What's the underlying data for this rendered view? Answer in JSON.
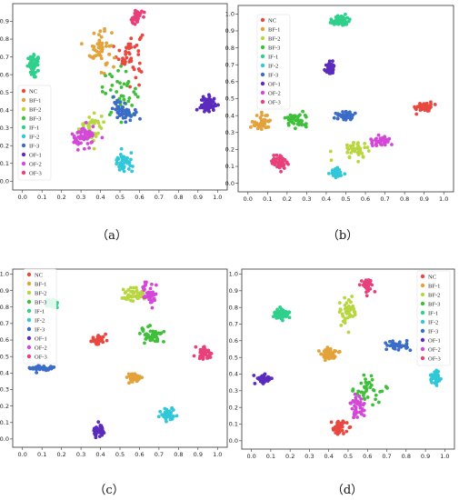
{
  "legend_labels": [
    "NC",
    "BF-1",
    "BF-2",
    "BF-3",
    "IF-1",
    "IF-2",
    "IF-3",
    "OF-1",
    "OF-2",
    "OF-3"
  ],
  "colors": {
    "NC": "#e8483f",
    "BF-1": "#e3a23a",
    "BF-2": "#b8d640",
    "BF-3": "#3fbf3a",
    "IF-1": "#2fd08c",
    "IF-2": "#30c8d8",
    "IF-3": "#3a6cc8",
    "OF-1": "#5b2bbd",
    "OF-2": "#d448d8",
    "OF-3": "#e8407a"
  },
  "captions": [
    "（a）",
    "（b）",
    "（c）",
    "（d）"
  ],
  "chart_data": [
    {
      "type": "scatter",
      "panel": "a",
      "caption": "（a）",
      "xlim": [
        -0.05,
        1.05
      ],
      "ylim": [
        -0.05,
        1.0
      ],
      "xticks": [
        "0.0",
        "0.1",
        "0.2",
        "0.3",
        "0.4",
        "0.5",
        "0.6",
        "0.7",
        "0.8",
        "0.9",
        "1.0"
      ],
      "yticks": [
        "0.0",
        "0.1",
        "0.2",
        "0.3",
        "0.4",
        "0.5",
        "0.6",
        "0.7",
        "0.8",
        "0.9"
      ],
      "legend": {
        "position": "center-left"
      },
      "series": [
        {
          "name": "NC",
          "clusters": [
            {
              "cx": 0.55,
              "cy": 0.72,
              "sx": 0.06,
              "sy": 0.12,
              "n": 45
            }
          ]
        },
        {
          "name": "BF-1",
          "clusters": [
            {
              "cx": 0.4,
              "cy": 0.75,
              "sx": 0.05,
              "sy": 0.12,
              "n": 50
            }
          ]
        },
        {
          "name": "BF-2",
          "clusters": [
            {
              "cx": 0.35,
              "cy": 0.3,
              "sx": 0.07,
              "sy": 0.07,
              "n": 40
            }
          ]
        },
        {
          "name": "BF-3",
          "clusters": [
            {
              "cx": 0.5,
              "cy": 0.5,
              "sx": 0.08,
              "sy": 0.12,
              "n": 40
            }
          ]
        },
        {
          "name": "IF-1",
          "clusters": [
            {
              "cx": 0.06,
              "cy": 0.65,
              "sx": 0.03,
              "sy": 0.05,
              "n": 60
            }
          ]
        },
        {
          "name": "IF-2",
          "clusters": [
            {
              "cx": 0.52,
              "cy": 0.1,
              "sx": 0.04,
              "sy": 0.05,
              "n": 45
            }
          ]
        },
        {
          "name": "IF-3",
          "clusters": [
            {
              "cx": 0.52,
              "cy": 0.4,
              "sx": 0.05,
              "sy": 0.05,
              "n": 50
            }
          ]
        },
        {
          "name": "OF-1",
          "clusters": [
            {
              "cx": 0.95,
              "cy": 0.43,
              "sx": 0.035,
              "sy": 0.04,
              "n": 70
            }
          ]
        },
        {
          "name": "OF-2",
          "clusters": [
            {
              "cx": 0.32,
              "cy": 0.25,
              "sx": 0.06,
              "sy": 0.06,
              "n": 50
            }
          ]
        },
        {
          "name": "OF-3",
          "clusters": [
            {
              "cx": 0.58,
              "cy": 0.92,
              "sx": 0.03,
              "sy": 0.05,
              "n": 35
            }
          ]
        }
      ]
    },
    {
      "type": "scatter",
      "panel": "b",
      "caption": "（b）",
      "xlim": [
        -0.05,
        1.05
      ],
      "ylim": [
        -0.05,
        1.05
      ],
      "xticks": [
        "0.0",
        "0.1",
        "0.2",
        "0.3",
        "0.4",
        "0.5",
        "0.6",
        "0.7",
        "0.8",
        "0.9",
        "1.0"
      ],
      "yticks": [
        "0.0",
        "0.1",
        "0.2",
        "0.3",
        "0.4",
        "0.5",
        "0.6",
        "0.7",
        "0.8",
        "0.9",
        "1.0"
      ],
      "legend": {
        "position": "top-left"
      },
      "series": [
        {
          "name": "NC",
          "clusters": [
            {
              "cx": 0.9,
              "cy": 0.45,
              "sx": 0.04,
              "sy": 0.025,
              "n": 45
            }
          ]
        },
        {
          "name": "BF-1",
          "clusters": [
            {
              "cx": 0.07,
              "cy": 0.36,
              "sx": 0.04,
              "sy": 0.05,
              "n": 40
            }
          ]
        },
        {
          "name": "BF-2",
          "clusters": [
            {
              "cx": 0.55,
              "cy": 0.2,
              "sx": 0.07,
              "sy": 0.05,
              "n": 40
            }
          ]
        },
        {
          "name": "BF-3",
          "clusters": [
            {
              "cx": 0.25,
              "cy": 0.37,
              "sx": 0.05,
              "sy": 0.04,
              "n": 45
            }
          ]
        },
        {
          "name": "IF-1",
          "clusters": [
            {
              "cx": 0.47,
              "cy": 0.96,
              "sx": 0.04,
              "sy": 0.025,
              "n": 70
            }
          ]
        },
        {
          "name": "IF-2",
          "clusters": [
            {
              "cx": 0.45,
              "cy": 0.06,
              "sx": 0.03,
              "sy": 0.03,
              "n": 40
            }
          ]
        },
        {
          "name": "IF-3",
          "clusters": [
            {
              "cx": 0.5,
              "cy": 0.4,
              "sx": 0.035,
              "sy": 0.025,
              "n": 45
            }
          ]
        },
        {
          "name": "OF-1",
          "clusters": [
            {
              "cx": 0.42,
              "cy": 0.68,
              "sx": 0.025,
              "sy": 0.03,
              "n": 50
            }
          ]
        },
        {
          "name": "OF-2",
          "clusters": [
            {
              "cx": 0.68,
              "cy": 0.25,
              "sx": 0.05,
              "sy": 0.02,
              "n": 40
            }
          ]
        },
        {
          "name": "OF-3",
          "clusters": [
            {
              "cx": 0.16,
              "cy": 0.13,
              "sx": 0.035,
              "sy": 0.035,
              "n": 50
            }
          ]
        }
      ]
    },
    {
      "type": "scatter",
      "panel": "c",
      "caption": "（c）",
      "xlim": [
        -0.05,
        1.05
      ],
      "ylim": [
        -0.05,
        1.03
      ],
      "xticks": [
        "0.0",
        "0.1",
        "0.2",
        "0.3",
        "0.4",
        "0.5",
        "0.6",
        "0.7",
        "0.8",
        "0.9",
        "1.0"
      ],
      "yticks": [
        "0.0",
        "0.1",
        "0.2",
        "0.3",
        "0.4",
        "0.5",
        "0.6",
        "0.7",
        "0.8",
        "0.9",
        "1.0"
      ],
      "legend": {
        "position": "top-left"
      },
      "series": [
        {
          "name": "NC",
          "clusters": [
            {
              "cx": 0.39,
              "cy": 0.6,
              "sx": 0.035,
              "sy": 0.025,
              "n": 50
            }
          ]
        },
        {
          "name": "BF-1",
          "clusters": [
            {
              "cx": 0.57,
              "cy": 0.37,
              "sx": 0.035,
              "sy": 0.025,
              "n": 45
            }
          ]
        },
        {
          "name": "BF-2",
          "clusters": [
            {
              "cx": 0.57,
              "cy": 0.87,
              "sx": 0.045,
              "sy": 0.05,
              "n": 45
            }
          ]
        },
        {
          "name": "BF-3",
          "clusters": [
            {
              "cx": 0.66,
              "cy": 0.63,
              "sx": 0.06,
              "sy": 0.04,
              "n": 45
            }
          ]
        },
        {
          "name": "IF-1",
          "clusters": [
            {
              "cx": 0.15,
              "cy": 0.82,
              "sx": 0.03,
              "sy": 0.025,
              "n": 50
            }
          ]
        },
        {
          "name": "IF-2",
          "clusters": [
            {
              "cx": 0.75,
              "cy": 0.15,
              "sx": 0.035,
              "sy": 0.035,
              "n": 45
            }
          ]
        },
        {
          "name": "IF-3",
          "clusters": [
            {
              "cx": 0.1,
              "cy": 0.43,
              "sx": 0.05,
              "sy": 0.015,
              "n": 40
            }
          ]
        },
        {
          "name": "OF-1",
          "clusters": [
            {
              "cx": 0.39,
              "cy": 0.05,
              "sx": 0.03,
              "sy": 0.03,
              "n": 55
            }
          ]
        },
        {
          "name": "OF-2",
          "clusters": [
            {
              "cx": 0.65,
              "cy": 0.88,
              "sx": 0.03,
              "sy": 0.07,
              "n": 40
            }
          ]
        },
        {
          "name": "OF-3",
          "clusters": [
            {
              "cx": 0.93,
              "cy": 0.52,
              "sx": 0.035,
              "sy": 0.035,
              "n": 45
            }
          ]
        }
      ]
    },
    {
      "type": "scatter",
      "panel": "d",
      "caption": "（d）",
      "xlim": [
        -0.05,
        1.05
      ],
      "ylim": [
        -0.05,
        1.03
      ],
      "xticks": [
        "0.0",
        "0.1",
        "0.2",
        "0.3",
        "0.4",
        "0.5",
        "0.6",
        "0.7",
        "0.8",
        "0.9",
        "1.0"
      ],
      "yticks": [
        "0.0",
        "0.1",
        "0.2",
        "0.3",
        "0.4",
        "0.5",
        "0.6",
        "0.7",
        "0.8",
        "0.9",
        "1.0"
      ],
      "legend": {
        "position": "top-right"
      },
      "series": [
        {
          "name": "NC",
          "clusters": [
            {
              "cx": 0.45,
              "cy": 0.08,
              "sx": 0.04,
              "sy": 0.04,
              "n": 45
            }
          ]
        },
        {
          "name": "BF-1",
          "clusters": [
            {
              "cx": 0.4,
              "cy": 0.52,
              "sx": 0.04,
              "sy": 0.035,
              "n": 50
            }
          ]
        },
        {
          "name": "BF-2",
          "clusters": [
            {
              "cx": 0.5,
              "cy": 0.78,
              "sx": 0.04,
              "sy": 0.07,
              "n": 45
            }
          ]
        },
        {
          "name": "BF-3",
          "clusters": [
            {
              "cx": 0.6,
              "cy": 0.3,
              "sx": 0.07,
              "sy": 0.07,
              "n": 40
            }
          ]
        },
        {
          "name": "IF-1",
          "clusters": [
            {
              "cx": 0.15,
              "cy": 0.76,
              "sx": 0.035,
              "sy": 0.03,
              "n": 60
            }
          ]
        },
        {
          "name": "IF-2",
          "clusters": [
            {
              "cx": 0.95,
              "cy": 0.38,
              "sx": 0.025,
              "sy": 0.04,
              "n": 40
            }
          ]
        },
        {
          "name": "IF-3",
          "clusters": [
            {
              "cx": 0.76,
              "cy": 0.57,
              "sx": 0.06,
              "sy": 0.025,
              "n": 35
            }
          ]
        },
        {
          "name": "OF-1",
          "clusters": [
            {
              "cx": 0.06,
              "cy": 0.37,
              "sx": 0.035,
              "sy": 0.025,
              "n": 55
            }
          ]
        },
        {
          "name": "OF-2",
          "clusters": [
            {
              "cx": 0.55,
              "cy": 0.2,
              "sx": 0.03,
              "sy": 0.06,
              "n": 40
            }
          ]
        },
        {
          "name": "OF-3",
          "clusters": [
            {
              "cx": 0.6,
              "cy": 0.93,
              "sx": 0.03,
              "sy": 0.04,
              "n": 35
            }
          ]
        }
      ]
    }
  ]
}
